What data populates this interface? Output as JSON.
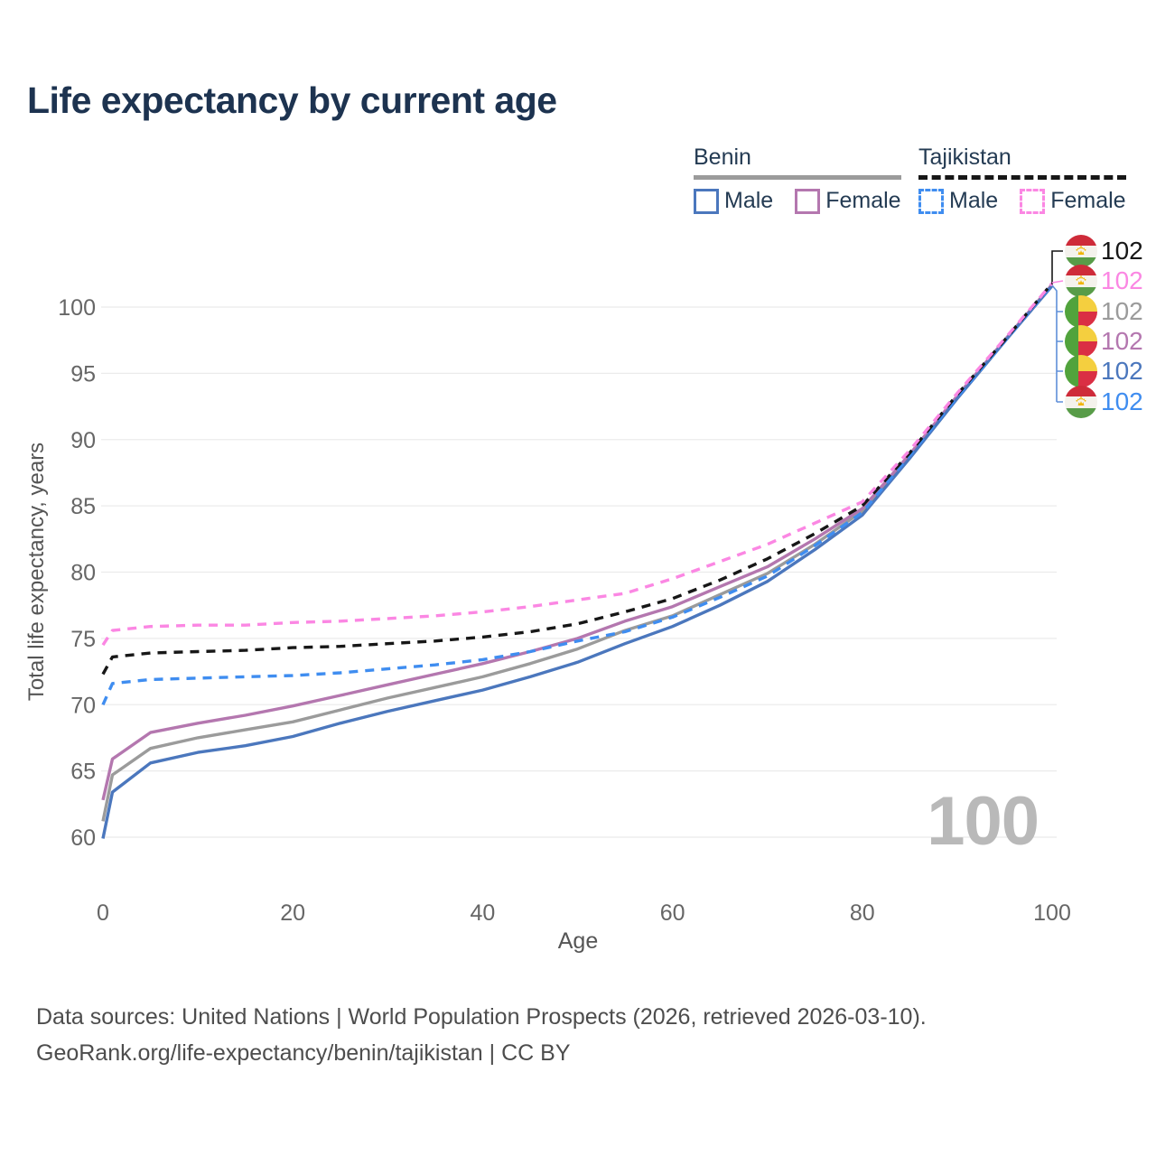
{
  "title": "Life expectancy by current age",
  "legend": {
    "groups": [
      {
        "country": "Benin",
        "line_style": "solid",
        "line_color": "#9b9b9b",
        "items": [
          {
            "label": "Male",
            "color": "#4b77bd",
            "style": "solid"
          },
          {
            "label": "Female",
            "color": "#b477af",
            "style": "solid"
          }
        ]
      },
      {
        "country": "Tajikistan",
        "line_style": "dashed",
        "line_color": "#171717",
        "items": [
          {
            "label": "Male",
            "color": "#3f8df0",
            "style": "dashed"
          },
          {
            "label": "Female",
            "color": "#fb87e3",
            "style": "dashed"
          }
        ]
      }
    ]
  },
  "chart_data": {
    "type": "line",
    "title": "Life expectancy by current age",
    "xlabel": "Age",
    "ylabel": "Total life expectancy, years",
    "xlim": [
      0,
      100
    ],
    "ylim": [
      60,
      100
    ],
    "xticks": [
      0,
      20,
      40,
      60,
      80,
      100
    ],
    "yticks": [
      60,
      65,
      70,
      75,
      80,
      85,
      90,
      95,
      100
    ],
    "grid": "horizontal",
    "x": [
      0,
      1,
      5,
      10,
      15,
      20,
      25,
      30,
      35,
      40,
      45,
      50,
      55,
      60,
      65,
      70,
      75,
      80,
      85,
      90,
      95,
      100
    ],
    "series": [
      {
        "name": "Benin",
        "country": "benin",
        "sex": "all",
        "color": "#9b9b9b",
        "style": "solid",
        "values": [
          61.2,
          64.7,
          66.7,
          67.5,
          68.1,
          68.7,
          69.6,
          70.5,
          71.3,
          72.1,
          73.1,
          74.2,
          75.6,
          76.7,
          78.3,
          79.9,
          82.1,
          84.6,
          88.8,
          93.2,
          97.5,
          101.7
        ]
      },
      {
        "name": "Benin Female",
        "country": "benin",
        "sex": "female",
        "color": "#b477af",
        "style": "solid",
        "values": [
          62.8,
          65.9,
          67.9,
          68.6,
          69.2,
          69.9,
          70.7,
          71.5,
          72.3,
          73.1,
          74.0,
          75.0,
          76.3,
          77.4,
          78.9,
          80.4,
          82.5,
          84.8,
          88.9,
          93.3,
          97.5,
          101.7
        ]
      },
      {
        "name": "Benin Male",
        "country": "benin",
        "sex": "male",
        "color": "#4b77bd",
        "style": "solid",
        "values": [
          59.9,
          63.4,
          65.6,
          66.4,
          66.9,
          67.6,
          68.6,
          69.5,
          70.3,
          71.1,
          72.1,
          73.2,
          74.6,
          75.9,
          77.5,
          79.3,
          81.7,
          84.3,
          88.6,
          93.1,
          97.4,
          101.6
        ]
      },
      {
        "name": "Tajikistan Male",
        "country": "tajikistan",
        "sex": "male",
        "color": "#3f8df0",
        "style": "dashed",
        "values": [
          70.0,
          71.6,
          71.9,
          72.0,
          72.1,
          72.2,
          72.4,
          72.7,
          73.0,
          73.4,
          74.0,
          74.8,
          75.5,
          76.6,
          78.1,
          79.7,
          82.0,
          84.5,
          88.8,
          93.2,
          97.4,
          101.7
        ]
      },
      {
        "name": "Tajikistan",
        "country": "tajikistan",
        "sex": "all",
        "color": "#171717",
        "style": "dashed",
        "values": [
          72.3,
          73.6,
          73.9,
          74.0,
          74.1,
          74.3,
          74.4,
          74.6,
          74.8,
          75.1,
          75.5,
          76.1,
          77.0,
          78.0,
          79.4,
          81.0,
          82.9,
          85.0,
          89.0,
          93.4,
          97.5,
          101.8
        ]
      },
      {
        "name": "Tajikistan Female",
        "country": "tajikistan",
        "sex": "female",
        "color": "#fb87e3",
        "style": "dashed",
        "values": [
          74.5,
          75.6,
          75.9,
          76.0,
          76.0,
          76.2,
          76.3,
          76.5,
          76.7,
          77.0,
          77.4,
          77.9,
          78.4,
          79.5,
          80.8,
          82.1,
          83.7,
          85.3,
          89.2,
          93.5,
          97.6,
          101.8
        ]
      }
    ],
    "end_labels": [
      {
        "text": "102",
        "flag": "tajikistan",
        "color": "#171717",
        "series": "Tajikistan"
      },
      {
        "text": "102",
        "flag": "tajikistan",
        "color": "#fb87e3",
        "series": "Tajikistan Female"
      },
      {
        "text": "102",
        "flag": "benin",
        "color": "#9b9b9b",
        "series": "Benin"
      },
      {
        "text": "102",
        "flag": "benin",
        "color": "#b477af",
        "series": "Benin Female"
      },
      {
        "text": "102",
        "flag": "benin",
        "color": "#4b77bd",
        "series": "Benin Male"
      },
      {
        "text": "102",
        "flag": "tajikistan",
        "color": "#3f8df0",
        "series": "Tajikistan Male"
      }
    ],
    "watermark": "100"
  },
  "footer": {
    "line1": "Data sources: United Nations | World Population Prospects (2026, retrieved 2026-03-10).",
    "line2": "GeoRank.org/life-expectancy/benin/tajikistan | CC BY"
  }
}
